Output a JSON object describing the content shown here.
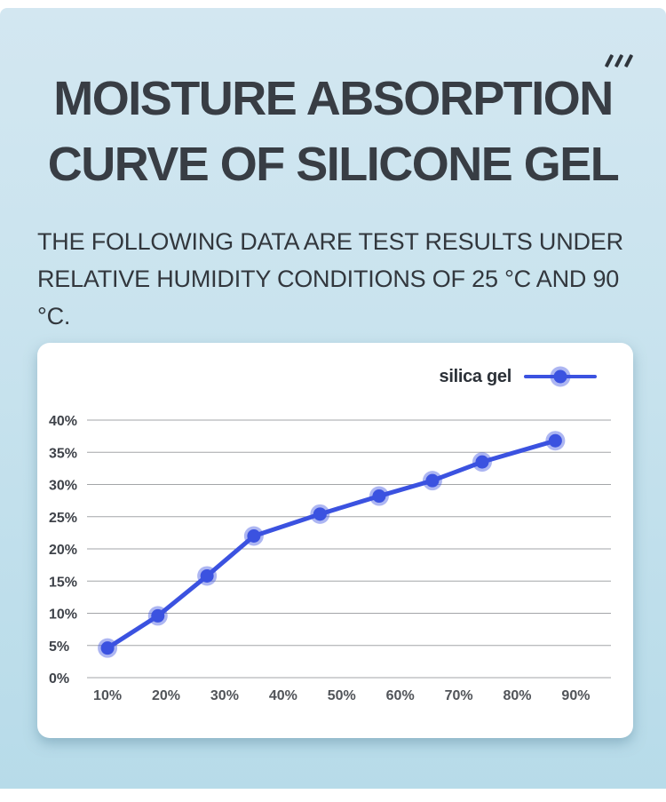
{
  "page": {
    "title_line1": "MOISTURE ABSORPTION",
    "title_line2": "CURVE OF SILICONE GEL",
    "subtitle_line1": "THE FOLLOWING DATA ARE TEST RESULTS UNDER",
    "subtitle_line2": "RELATIVE HUMIDITY CONDITIONS OF 25 °C AND 90 °C.",
    "decor_slashes": "///"
  },
  "legend": {
    "label": "silica gel"
  },
  "colors": {
    "background_top": "#d3e7f1",
    "background_bottom": "#b7dbe9",
    "card": "#ffffff",
    "accent_blue": "#3b52e0",
    "title_text": "#383d44"
  },
  "chart_data": {
    "type": "line",
    "title": "",
    "xlabel": "",
    "ylabel": "",
    "x": [
      10,
      18.6,
      27,
      35,
      46.3,
      56.4,
      65.5,
      74,
      86.5
    ],
    "series": [
      {
        "name": "silica gel",
        "values": [
          4.6,
          9.6,
          15.8,
          22.0,
          25.4,
          28.2,
          30.6,
          33.5,
          36.8
        ]
      }
    ],
    "xticks": {
      "values": [
        10,
        20,
        30,
        40,
        50,
        60,
        70,
        80,
        90
      ],
      "labels": [
        "10%",
        "20%",
        "30%",
        "40%",
        "50%",
        "60%",
        "70%",
        "80%",
        "90%"
      ]
    },
    "yticks": {
      "values": [
        0,
        5,
        10,
        15,
        20,
        25,
        30,
        35,
        40
      ],
      "labels": [
        "0%",
        "5%",
        "10%",
        "15%",
        "20%",
        "25%",
        "30%",
        "35%",
        "40%"
      ]
    },
    "xlim": [
      6.5,
      96
    ],
    "ylim": [
      0,
      40
    ],
    "grid": "horizontal",
    "legend_position": "top-right",
    "line_color": "#3b52e0",
    "marker_halo": "rgba(59,82,224,0.42)",
    "gridline_color": "#a3a5a8",
    "ytick_color": "#3f434a",
    "xtick_color": "#515459"
  }
}
